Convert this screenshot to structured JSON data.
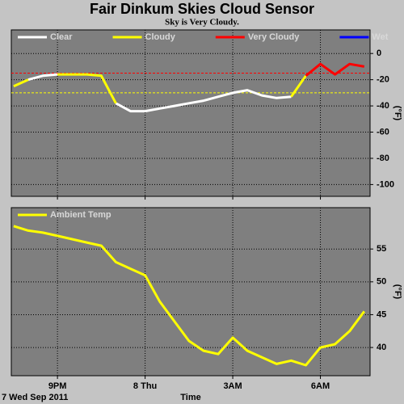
{
  "title": "Fair Dinkum Skies Cloud Sensor",
  "subtitle": "Sky is Very Cloudy.",
  "footer": "7 Wed Sep 2011",
  "chart_data": [
    {
      "type": "line",
      "ylabel": "(°F)",
      "x": [
        19.5,
        20,
        20.5,
        21,
        21.5,
        22,
        22.5,
        23,
        23.5,
        24,
        24.5,
        25,
        25.5,
        26,
        26.5,
        27,
        27.5,
        28,
        28.5,
        29,
        29.5,
        30,
        30.5,
        31,
        31.5
      ],
      "series": [
        {
          "name": "Clear",
          "color": "#ffffff",
          "values": [
            null,
            -20,
            -17,
            -16,
            null,
            null,
            null,
            -38,
            -44,
            -44,
            -42,
            -40,
            -38,
            -36,
            -33,
            -30,
            -28,
            -32,
            -34,
            -33,
            null,
            null,
            null,
            null,
            null
          ]
        },
        {
          "name": "Cloudy",
          "color": "#ffff00",
          "values": [
            -25,
            -20,
            null,
            -16,
            -16,
            -16,
            -17,
            -38,
            null,
            null,
            null,
            null,
            null,
            null,
            null,
            null,
            null,
            null,
            null,
            -33,
            -17,
            null,
            null,
            null,
            null
          ]
        },
        {
          "name": "Very Cloudy",
          "color": "#ff0000",
          "values": [
            null,
            null,
            null,
            null,
            null,
            null,
            null,
            null,
            null,
            null,
            null,
            null,
            null,
            null,
            null,
            null,
            null,
            null,
            null,
            null,
            -17,
            -8,
            -16,
            -8,
            -10
          ]
        },
        {
          "name": "Wet",
          "color": "#0000ff",
          "values": [
            null,
            null,
            null,
            null,
            null,
            null,
            null,
            null,
            null,
            null,
            null,
            null,
            null,
            null,
            null,
            null,
            null,
            null,
            null,
            null,
            null,
            null,
            null,
            null,
            null
          ]
        }
      ],
      "thresholds": [
        {
          "value": -15,
          "color": "#ff0000"
        },
        {
          "value": -30,
          "color": "#ffff00"
        }
      ],
      "xlim": [
        19.42,
        31.7
      ],
      "xticks": [
        21,
        24,
        27,
        30
      ],
      "ylim": [
        -109,
        18
      ],
      "yticks": [
        0,
        -20,
        -40,
        -60,
        -80,
        -100
      ],
      "grid": true
    },
    {
      "type": "line",
      "ylabel": "(°F)",
      "xlabel": "Time",
      "x": [
        19.5,
        20,
        20.5,
        21,
        21.5,
        22,
        22.5,
        23,
        23.5,
        24,
        24.5,
        25,
        25.5,
        26,
        26.5,
        27,
        27.5,
        28,
        28.5,
        29,
        29.5,
        30,
        30.5,
        31,
        31.5
      ],
      "series": [
        {
          "name": "Ambient Temp",
          "color": "#ffff00",
          "values": [
            58.5,
            57.8,
            57.5,
            57,
            56.5,
            56,
            55.5,
            53,
            52,
            51,
            47,
            44,
            41,
            39.5,
            39,
            41.5,
            39.5,
            38.5,
            37.5,
            38,
            37.3,
            40,
            40.5,
            42.5,
            45.5
          ]
        }
      ],
      "xlim": [
        19.42,
        31.7
      ],
      "xticks": [
        {
          "value": 21,
          "label": "9PM"
        },
        {
          "value": 24,
          "label": "8 Thu"
        },
        {
          "value": 27,
          "label": "3AM"
        },
        {
          "value": 30,
          "label": "6AM"
        }
      ],
      "ylim": [
        35.7,
        61.3
      ],
      "yticks": [
        40,
        45,
        50,
        55
      ],
      "grid": true
    }
  ]
}
